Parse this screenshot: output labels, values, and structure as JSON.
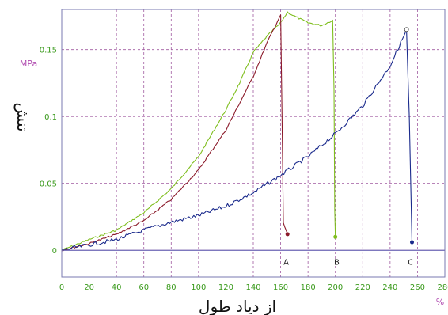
{
  "chart_data": {
    "type": "line",
    "xlabel": "از دیاد طول",
    "ylabel": "تنش",
    "x_unit": "%",
    "y_unit": "MPa",
    "xlim": [
      0,
      280
    ],
    "ylim": [
      -0.02,
      0.18
    ],
    "x_ticks": [
      "0",
      "20",
      "40",
      "60",
      "80",
      "100",
      "120",
      "140",
      "160",
      "180",
      "200",
      "220",
      "240",
      "260",
      "280"
    ],
    "y_ticks": [
      {
        "value": 0,
        "label": "0"
      },
      {
        "value": 0.05,
        "label": "0.05"
      },
      {
        "value": 0.1,
        "label": "0.1"
      },
      {
        "value": 0.15,
        "label": "0.15"
      }
    ],
    "grid": true,
    "series": [
      {
        "color": "#7fbe1e",
        "x": [
          0,
          20,
          40,
          60,
          80,
          100,
          120,
          130,
          140,
          150,
          160,
          165,
          170,
          180,
          190,
          198,
          199,
          199.5,
          200
        ],
        "y": [
          0,
          0.008,
          0.015,
          0.028,
          0.046,
          0.07,
          0.105,
          0.125,
          0.148,
          0.16,
          0.17,
          0.178,
          0.175,
          0.17,
          0.168,
          0.172,
          0.12,
          0.03,
          0.01
        ]
      },
      {
        "color": "#8b1a2a",
        "x": [
          0,
          20,
          40,
          60,
          80,
          100,
          120,
          140,
          150,
          160,
          161,
          162,
          165
        ],
        "y": [
          0,
          0.005,
          0.012,
          0.022,
          0.038,
          0.06,
          0.09,
          0.13,
          0.155,
          0.176,
          0.1,
          0.02,
          0.012
        ]
      },
      {
        "color": "#1a2a8c",
        "x": [
          0,
          20,
          40,
          60,
          80,
          100,
          120,
          140,
          160,
          180,
          200,
          220,
          240,
          250,
          252,
          254,
          256
        ],
        "y": [
          0,
          0.004,
          0.008,
          0.015,
          0.021,
          0.026,
          0.033,
          0.043,
          0.056,
          0.07,
          0.087,
          0.108,
          0.138,
          0.16,
          0.165,
          0.1,
          0.006
        ]
      }
    ],
    "annotations": [
      {
        "text": "A",
        "x": 164,
        "y": -0.005
      },
      {
        "text": "B",
        "x": 201,
        "y": -0.005
      },
      {
        "text": "C",
        "x": 255,
        "y": -0.005
      }
    ]
  }
}
